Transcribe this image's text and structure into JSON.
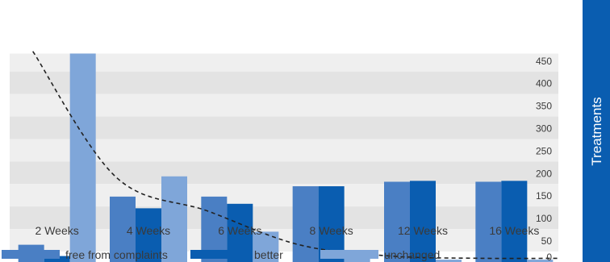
{
  "chart_data": {
    "type": "bar",
    "categories": [
      "2 Weeks",
      "4 Weeks",
      "6 Weeks",
      "8 Weeks",
      "12 Weeks",
      "16 Weeks"
    ],
    "series": [
      {
        "name": "free from complaints",
        "color": "#4a7fc4",
        "values": [
          40,
          147,
          147,
          170,
          180,
          180
        ]
      },
      {
        "name": "better",
        "color": "#0a5db0",
        "values": [
          15,
          121,
          131,
          170,
          182,
          182
        ]
      },
      {
        "name": "unchanged",
        "color": "#7fa6d9",
        "values": [
          465,
          192,
          69,
          17,
          7,
          7
        ]
      }
    ],
    "trend_line": {
      "style": "dashed",
      "color": "#222222",
      "values_at_categories": [
        470,
        190,
        115,
        40,
        15,
        10
      ]
    },
    "ylabel": "Treatments",
    "ylim": [
      0,
      465
    ],
    "yticks": [
      0,
      50,
      100,
      150,
      200,
      250,
      300,
      350,
      400,
      450
    ],
    "grid": "horizontal bands",
    "legend_position": "bottom",
    "colors": {
      "band_light": "#efefef",
      "band_dark": "#e3e3e3",
      "axis_bar": "#0a5db0",
      "axis_text": "#3a3a3a",
      "ylabel_text": "#ffffff"
    }
  }
}
